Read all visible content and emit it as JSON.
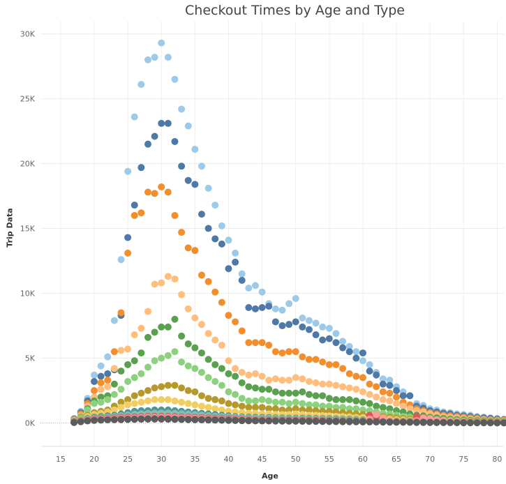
{
  "chart_data": {
    "type": "scatter",
    "title": "Checkout Times by Age and Type",
    "xlabel": "Age",
    "ylabel": "Trip Data",
    "xlim": [
      12,
      81
    ],
    "ylim": [
      -1800,
      31000
    ],
    "x_ticks": [
      "15",
      "20",
      "25",
      "30",
      "35",
      "40",
      "45",
      "50",
      "55",
      "60",
      "65",
      "70",
      "75",
      "80"
    ],
    "y_ticks": [
      "0K",
      "5K",
      "10K",
      "15K",
      "20K",
      "25K",
      "30K"
    ],
    "grid": true,
    "ages": [
      17,
      18,
      19,
      20,
      21,
      22,
      23,
      24,
      25,
      26,
      27,
      28,
      29,
      30,
      31,
      32,
      33,
      34,
      35,
      36,
      37,
      38,
      39,
      40,
      41,
      42,
      43,
      44,
      45,
      46,
      47,
      48,
      49,
      50,
      51,
      52,
      53,
      54,
      55,
      56,
      57,
      58,
      59,
      60,
      61,
      62,
      63,
      64,
      65,
      66,
      67,
      68,
      69,
      70,
      71,
      72,
      73,
      74,
      75,
      76,
      77,
      78,
      79,
      80,
      81
    ],
    "series": [
      {
        "color": "#9ecae9",
        "values": [
          350,
          900,
          1900,
          3700,
          4400,
          5100,
          7900,
          12600,
          19400,
          23600,
          26100,
          28000,
          28200,
          29300,
          28200,
          26500,
          24200,
          22900,
          21100,
          19800,
          18100,
          16800,
          15200,
          14100,
          13100,
          11500,
          10400,
          10600,
          10100,
          9200,
          8800,
          8700,
          9200,
          9600,
          8100,
          7900,
          7700,
          7400,
          7300,
          6900,
          6300,
          5900,
          5500,
          4800,
          4500,
          3900,
          3400,
          3300,
          2800,
          2400,
          2100,
          1500,
          1350,
          1100,
          1000,
          850,
          800,
          700,
          650,
          600,
          500,
          450,
          400,
          350,
          300
        ]
      },
      {
        "color": "#4e79a7",
        "values": [
          300,
          800,
          1700,
          3200,
          3600,
          3800,
          4100,
          8300,
          14300,
          16800,
          19700,
          21500,
          22100,
          23100,
          23100,
          21700,
          19800,
          18700,
          18400,
          16100,
          15000,
          14200,
          13800,
          11900,
          12400,
          11000,
          8900,
          8800,
          8900,
          9000,
          7800,
          7500,
          7600,
          7800,
          7400,
          7200,
          6800,
          6400,
          6500,
          6200,
          5800,
          5500,
          5000,
          5400,
          4000,
          3700,
          3000,
          2900,
          2500,
          2100,
          2100,
          1300,
          1150,
          950,
          850,
          750,
          700,
          600,
          550,
          500,
          430,
          400,
          350,
          300,
          250
        ]
      },
      {
        "color": "#f28e2b",
        "values": [
          250,
          700,
          1500,
          2500,
          3100,
          3300,
          5500,
          8500,
          13100,
          16000,
          16200,
          17800,
          17700,
          18200,
          17800,
          16000,
          14700,
          13500,
          13300,
          11400,
          10900,
          10100,
          9300,
          8300,
          7800,
          7100,
          6200,
          6200,
          6200,
          6000,
          5500,
          5400,
          5500,
          5500,
          5100,
          4900,
          4900,
          4700,
          4500,
          4500,
          4200,
          3800,
          3600,
          3500,
          3000,
          2800,
          2400,
          2300,
          2000,
          1600,
          1400,
          1100,
          950,
          800,
          700,
          600,
          550,
          500,
          450,
          400,
          350,
          300,
          250,
          220,
          200
        ]
      },
      {
        "color": "#ffbe7d",
        "values": [
          200,
          550,
          1300,
          2000,
          2600,
          2800,
          4200,
          5600,
          5700,
          6800,
          7300,
          8600,
          10700,
          10800,
          11300,
          11100,
          9900,
          8800,
          8100,
          7600,
          6900,
          6400,
          6000,
          4800,
          4200,
          3900,
          3700,
          3800,
          3600,
          3300,
          3400,
          3300,
          3300,
          3500,
          3400,
          3200,
          3100,
          3000,
          3000,
          2900,
          2800,
          2700,
          2600,
          2400,
          2200,
          2000,
          1800,
          1700,
          1500,
          1300,
          1100,
          950,
          850,
          700,
          600,
          500,
          450,
          400,
          350,
          300,
          270,
          240,
          200,
          180,
          160
        ]
      },
      {
        "color": "#59a14f",
        "values": [
          150,
          450,
          1100,
          1700,
          2000,
          2100,
          3000,
          4000,
          4500,
          4800,
          5400,
          6600,
          7000,
          7400,
          7400,
          8000,
          6700,
          6100,
          5800,
          5400,
          4900,
          4500,
          4200,
          3800,
          3600,
          3100,
          2800,
          2700,
          2600,
          2600,
          2400,
          2300,
          2300,
          2300,
          2400,
          2200,
          2100,
          2100,
          1900,
          1800,
          1800,
          1800,
          1700,
          1600,
          1500,
          1300,
          1200,
          1100,
          950,
          850,
          700,
          600,
          550,
          450,
          400,
          350,
          300,
          270,
          240,
          210,
          190,
          170,
          150,
          130,
          120
        ]
      },
      {
        "color": "#8cd17d",
        "values": [
          120,
          400,
          1000,
          1500,
          1600,
          1800,
          2200,
          2600,
          3200,
          3500,
          3800,
          4300,
          4800,
          5000,
          5200,
          5500,
          4700,
          4400,
          4200,
          3900,
          3500,
          3200,
          2900,
          2400,
          2200,
          1900,
          1700,
          1700,
          1800,
          1700,
          1600,
          1600,
          1500,
          1600,
          1500,
          1400,
          1400,
          1300,
          1300,
          1200,
          1200,
          1100,
          1100,
          1000,
          950,
          850,
          750,
          700,
          600,
          500,
          450,
          400,
          350,
          300,
          260,
          230,
          200,
          180,
          160,
          140,
          120,
          110,
          100,
          90,
          80
        ]
      },
      {
        "color": "#b6992d",
        "values": [
          100,
          300,
          600,
          800,
          900,
          1000,
          1300,
          1600,
          1800,
          2100,
          2300,
          2500,
          2700,
          2800,
          2900,
          2900,
          2700,
          2500,
          2400,
          2100,
          1900,
          1800,
          1700,
          1500,
          1400,
          1300,
          1200,
          1200,
          1200,
          1100,
          1100,
          1000,
          1000,
          1100,
          1000,
          1000,
          950,
          900,
          900,
          850,
          800,
          750,
          700,
          650,
          600,
          550,
          500,
          450,
          400,
          350,
          300,
          270,
          240,
          200,
          180,
          160,
          140,
          120,
          110,
          100,
          90,
          80,
          70,
          60,
          50
        ]
      },
      {
        "color": "#f1ce63",
        "values": [
          90,
          250,
          500,
          650,
          750,
          850,
          1000,
          1200,
          1400,
          1500,
          1600,
          1700,
          1800,
          1800,
          1800,
          1700,
          1600,
          1500,
          1400,
          1300,
          1200,
          1100,
          1000,
          900,
          850,
          800,
          750,
          750,
          700,
          700,
          650,
          650,
          650,
          700,
          650,
          600,
          600,
          580,
          550,
          520,
          500,
          470,
          440,
          420,
          400,
          370,
          340,
          300,
          270,
          240,
          210,
          190,
          170,
          150,
          130,
          120,
          100,
          90,
          80,
          70,
          60,
          55,
          50,
          45,
          40
        ]
      },
      {
        "color": "#499894",
        "values": [
          80,
          200,
          350,
          450,
          500,
          550,
          600,
          700,
          800,
          900,
          950,
          950,
          1000,
          1000,
          1000,
          950,
          900,
          850,
          800,
          750,
          700,
          650,
          600,
          550,
          500,
          470,
          450,
          440,
          430,
          420,
          400,
          390,
          380,
          380,
          370,
          360,
          350,
          340,
          330,
          320,
          300,
          290,
          270,
          250,
          240,
          220,
          200,
          180,
          160,
          140,
          130,
          120,
          100,
          90,
          80,
          70,
          65,
          60,
          55,
          50,
          45,
          40,
          35,
          30,
          25
        ]
      },
      {
        "color": "#86bcb6",
        "values": [
          70,
          180,
          300,
          380,
          420,
          460,
          500,
          560,
          620,
          680,
          720,
          740,
          760,
          770,
          770,
          750,
          720,
          690,
          650,
          610,
          570,
          530,
          500,
          460,
          430,
          410,
          390,
          380,
          370,
          360,
          350,
          340,
          330,
          330,
          320,
          310,
          300,
          290,
          280,
          270,
          260,
          250,
          240,
          230,
          220,
          200,
          180,
          160,
          140,
          120,
          110,
          100,
          90,
          80,
          70,
          60,
          55,
          50,
          45,
          40,
          35,
          30,
          25,
          20,
          18
        ]
      },
      {
        "color": "#e15759",
        "values": [
          60,
          160,
          260,
          320,
          350,
          380,
          400,
          430,
          460,
          480,
          500,
          510,
          520,
          520,
          510,
          500,
          480,
          460,
          440,
          420,
          400,
          380,
          360,
          340,
          320,
          300,
          290,
          280,
          270,
          260,
          250,
          240,
          235,
          230,
          225,
          220,
          210,
          200,
          190,
          180,
          170,
          160,
          150,
          150,
          600,
          420,
          300,
          160,
          120,
          100,
          90,
          500,
          420,
          300,
          200,
          140,
          120,
          100,
          80,
          60,
          50,
          45,
          40,
          35,
          30
        ]
      },
      {
        "color": "#ff9d9a",
        "values": [
          50,
          130,
          220,
          270,
          300,
          320,
          340,
          360,
          380,
          400,
          420,
          430,
          440,
          440,
          430,
          420,
          400,
          390,
          370,
          350,
          330,
          310,
          300,
          280,
          270,
          260,
          250,
          240,
          230,
          220,
          210,
          200,
          195,
          190,
          185,
          180,
          170,
          160,
          150,
          140,
          130,
          120,
          110,
          100,
          300,
          650,
          400,
          200,
          150,
          120,
          100,
          180,
          400,
          350,
          250,
          200,
          150,
          120,
          90,
          70,
          60,
          50,
          45,
          40,
          35
        ]
      },
      {
        "color": "#79706e",
        "values": [
          45,
          110,
          180,
          220,
          240,
          260,
          280,
          300,
          310,
          320,
          330,
          340,
          340,
          340,
          330,
          320,
          310,
          300,
          290,
          280,
          270,
          260,
          250,
          240,
          230,
          220,
          210,
          200,
          195,
          190,
          185,
          180,
          175,
          170,
          165,
          160,
          155,
          150,
          145,
          140,
          135,
          130,
          125,
          120,
          115,
          110,
          100,
          95,
          90,
          85,
          80,
          75,
          70,
          65,
          60,
          55,
          50,
          45,
          40,
          35,
          30,
          28,
          25,
          22,
          20
        ]
      },
      {
        "color": "#5c5c5c",
        "values": [
          40,
          100,
          160,
          200,
          220,
          240,
          250,
          260,
          270,
          280,
          290,
          300,
          300,
          300,
          290,
          280,
          270,
          260,
          250,
          240,
          230,
          220,
          210,
          200,
          190,
          180,
          170,
          165,
          160,
          155,
          150,
          145,
          140,
          135,
          130,
          125,
          120,
          115,
          110,
          105,
          100,
          95,
          90,
          85,
          80,
          75,
          70,
          65,
          60,
          55,
          50,
          45,
          40,
          35,
          30,
          28,
          25,
          22,
          20,
          18,
          16,
          14,
          12,
          10,
          8
        ]
      }
    ]
  }
}
